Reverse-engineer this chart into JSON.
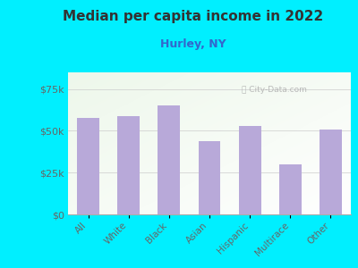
{
  "title": "Median per capita income in 2022",
  "subtitle": "Hurley, NY",
  "categories": [
    "All",
    "White",
    "Black",
    "Asian",
    "Hispanic",
    "Multirace",
    "Other"
  ],
  "values": [
    58000,
    59000,
    65000,
    44000,
    53000,
    30000,
    51000
  ],
  "bar_color": "#b8a9d9",
  "background_outer": "#00efff",
  "background_inner": "#f0f8ee",
  "title_color": "#333333",
  "subtitle_color": "#3366cc",
  "tick_label_color": "#666666",
  "ylim": [
    0,
    85000
  ],
  "yticks": [
    0,
    25000,
    50000,
    75000
  ],
  "watermark": "City-Data.com",
  "figsize": [
    4.0,
    3.0
  ],
  "dpi": 100
}
